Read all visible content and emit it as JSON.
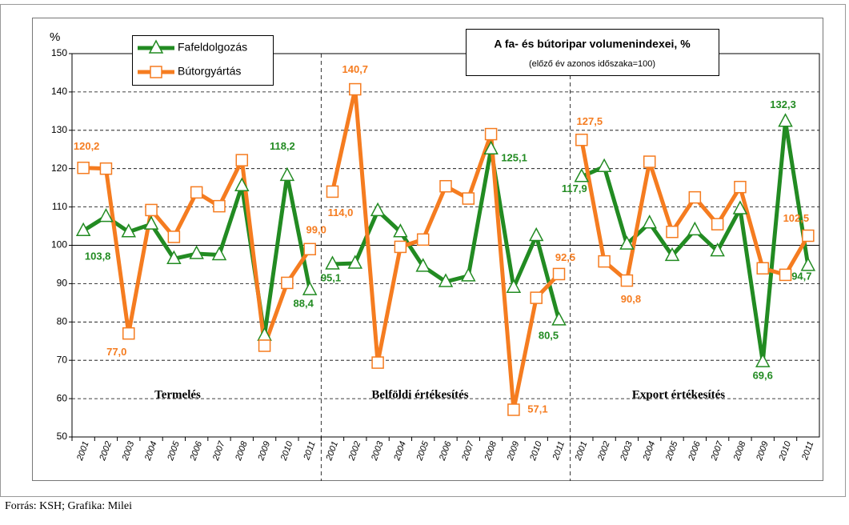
{
  "chart_data": {
    "type": "line",
    "title": "A fa- és bútoripar volumenindexei, %",
    "subtitle": "(előző év azonos időszaka=100)",
    "y_label": "%",
    "source": "Forrás: KSH; Grafika: Milei",
    "groups": [
      {
        "name": "Termelés",
        "categories": [
          "2001",
          "2002",
          "2003",
          "2004",
          "2005",
          "2006",
          "2007",
          "2008",
          "2009",
          "2010",
          "2011"
        ]
      },
      {
        "name": "Belföldi értékesítés",
        "categories": [
          "2001",
          "2002",
          "2003",
          "2004",
          "2005",
          "2006",
          "2007",
          "2008",
          "2009",
          "2010",
          "2011"
        ]
      },
      {
        "name": "Export értékesítés",
        "categories": [
          "2001",
          "2002",
          "2003",
          "2004",
          "2005",
          "2006",
          "2007",
          "2008",
          "2009",
          "2010",
          "2011"
        ]
      }
    ],
    "series": [
      {
        "name": "Fafeldolgozás",
        "color": "#228b22",
        "marker": "triangle",
        "values": [
          [
            103.8,
            107.5,
            103.5,
            105.5,
            96.5,
            97.8,
            97.5,
            115.5,
            76.5,
            118.2,
            88.4
          ],
          [
            95.1,
            95.3,
            109.0,
            103.5,
            94.5,
            90.5,
            92.0,
            125.1,
            89.0,
            102.5,
            80.5
          ],
          [
            117.9,
            120.5,
            100.3,
            105.8,
            97.3,
            104.0,
            98.5,
            109.5,
            69.6,
            132.3,
            94.7
          ]
        ],
        "value_labels": [
          [
            "103,8",
            null,
            null,
            null,
            null,
            null,
            null,
            null,
            null,
            "118,2",
            "88,4"
          ],
          [
            "95,1",
            null,
            null,
            null,
            null,
            null,
            null,
            "125,1",
            null,
            null,
            "80,5"
          ],
          [
            "117,9",
            null,
            null,
            null,
            null,
            null,
            null,
            null,
            "69,6",
            "132,3",
            "94,7"
          ]
        ]
      },
      {
        "name": "Bútorgyártás",
        "color": "#f57c20",
        "marker": "square",
        "values": [
          [
            120.2,
            120.0,
            77.0,
            109.2,
            102.2,
            113.8,
            110.2,
            122.2,
            73.8,
            90.2,
            99.0
          ],
          [
            114.0,
            140.7,
            69.4,
            99.6,
            101.5,
            115.4,
            112.2,
            129.0,
            57.1,
            86.3,
            92.5
          ],
          [
            127.5,
            95.8,
            90.8,
            121.8,
            103.5,
            112.5,
            105.5,
            115.2,
            94.0,
            92.3,
            102.5
          ]
        ],
        "value_labels": [
          [
            "120,2",
            null,
            "77,0",
            null,
            null,
            null,
            null,
            null,
            null,
            null,
            "99,0"
          ],
          [
            "114,0",
            "140,7",
            null,
            null,
            null,
            null,
            null,
            null,
            "57,1",
            null,
            "92,5"
          ],
          [
            "127,5",
            null,
            "90,8",
            null,
            null,
            null,
            null,
            null,
            null,
            null,
            "102,5"
          ]
        ]
      }
    ],
    "ylim": [
      50,
      150
    ],
    "yticks": [
      50,
      60,
      70,
      80,
      90,
      100,
      110,
      120,
      130,
      140,
      150
    ],
    "reference_line": 100,
    "grid": true
  }
}
